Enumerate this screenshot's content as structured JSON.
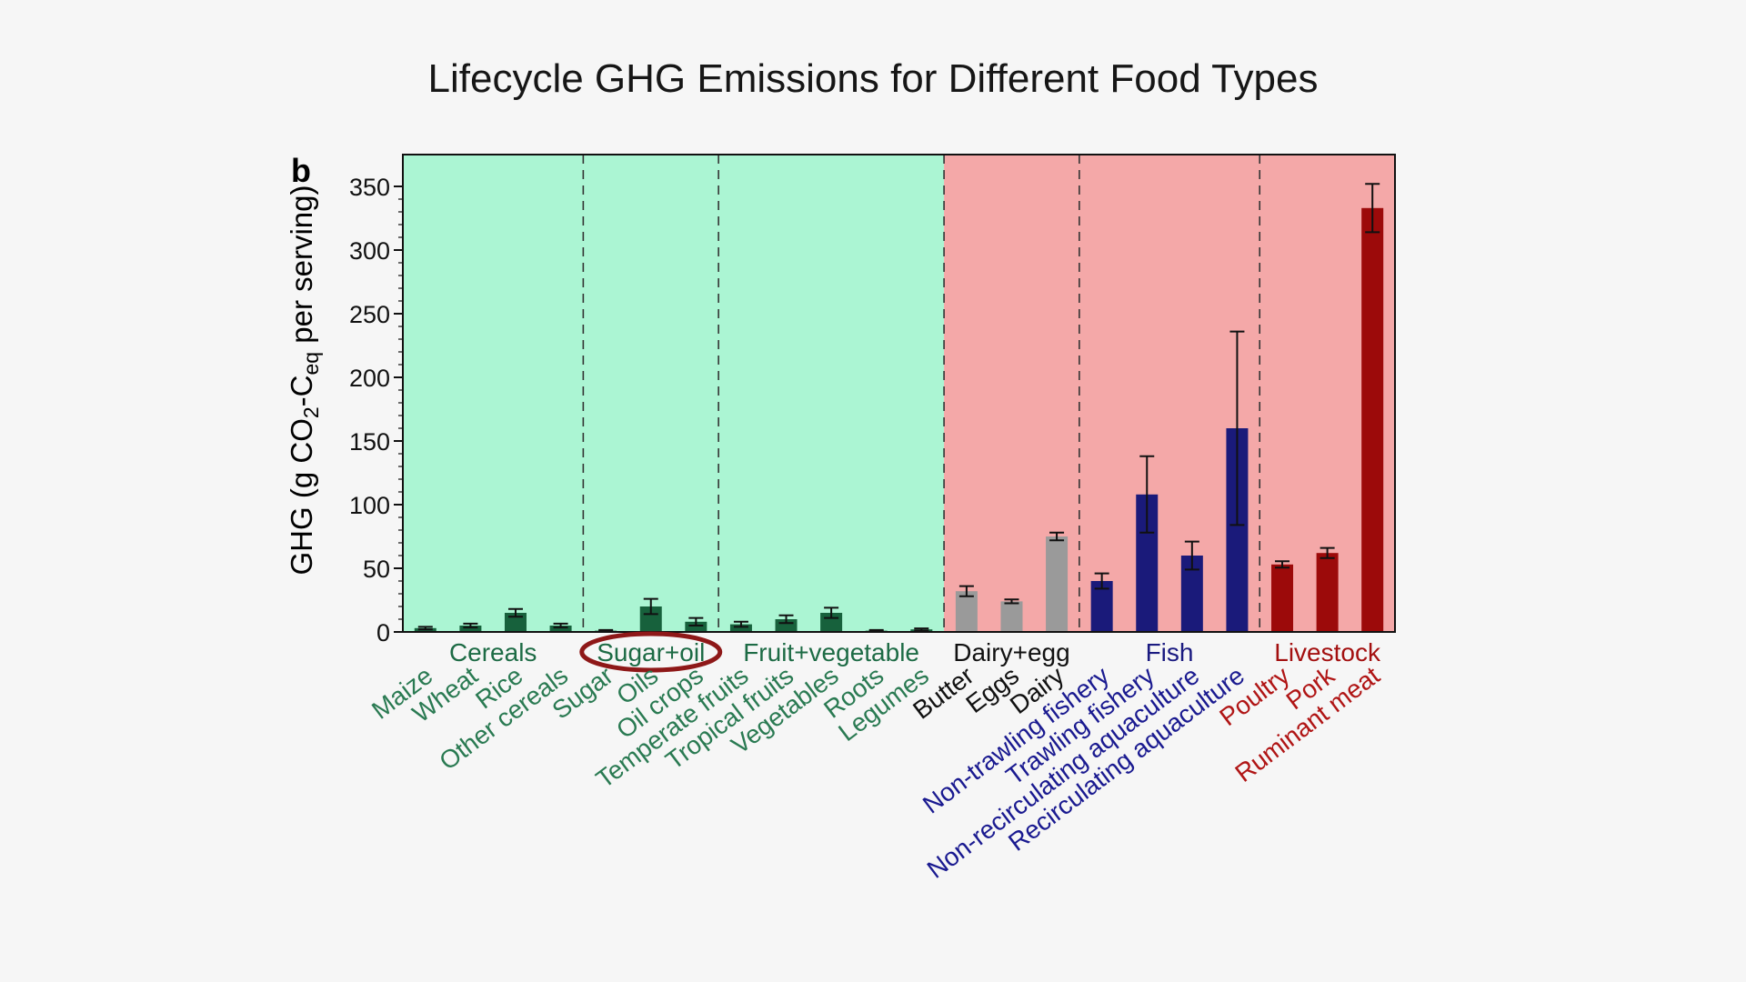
{
  "slide": {
    "title": "Lifecycle GHG Emissions for Different Food Types"
  },
  "chart_data": {
    "type": "bar",
    "panel_label": "b",
    "ylabel_parts": {
      "main": "GHG (g CO",
      "sub1": "2",
      "mid": "-C",
      "sub2": "eq",
      "tail": " per serving)"
    },
    "ylim": [
      0,
      375
    ],
    "yticks": [
      0,
      50,
      100,
      150,
      200,
      250,
      300,
      350
    ],
    "groups": [
      {
        "name": "Cereals",
        "color": "#1d6b45",
        "start": 0,
        "end": 3
      },
      {
        "name": "Sugar+oil",
        "color": "#1d6b45",
        "start": 4,
        "end": 6,
        "highlighted": true
      },
      {
        "name": "Fruit+vegetable",
        "color": "#1d6b45",
        "start": 7,
        "end": 11
      },
      {
        "name": "Dairy+egg",
        "color": "#111111",
        "start": 12,
        "end": 14
      },
      {
        "name": "Fish",
        "color": "#1a1a80",
        "start": 15,
        "end": 18
      },
      {
        "name": "Livestock",
        "color": "#a31010",
        "start": 19,
        "end": 21
      }
    ],
    "categories": [
      "Maize",
      "Wheat",
      "Rice",
      "Other cereals",
      "Sugar",
      "Oils",
      "Oil crops",
      "Temperate fruits",
      "Tropical fruits",
      "Vegetables",
      "Roots",
      "Legumes",
      "Butter",
      "Eggs",
      "Dairy",
      "Non-trawling fishery",
      "Trawling fishery",
      "Non-recirculating aquaculture",
      "Recirculating aquaculture",
      "Poultry",
      "Pork",
      "Ruminant meat"
    ],
    "values": [
      3,
      5,
      15,
      5,
      1,
      20,
      8,
      6,
      10,
      15,
      1,
      2,
      32,
      24,
      75,
      40,
      108,
      60,
      160,
      53,
      62,
      333
    ],
    "errors": [
      1,
      1.5,
      3,
      1.5,
      0.5,
      6,
      3,
      2,
      3,
      4,
      0.5,
      0.8,
      4,
      1.5,
      3,
      6,
      30,
      11,
      76,
      2.5,
      4,
      19
    ],
    "bar_colors": [
      "#17613c",
      "#17613c",
      "#17613c",
      "#17613c",
      "#17613c",
      "#17613c",
      "#17613c",
      "#17613c",
      "#17613c",
      "#17613c",
      "#17613c",
      "#17613c",
      "#9a9a9a",
      "#9a9a9a",
      "#9a9a9a",
      "#1a1a7a",
      "#1a1a7a",
      "#1a1a7a",
      "#1a1a7a",
      "#9c0a0a",
      "#9c0a0a",
      "#9c0a0a"
    ],
    "label_colors": [
      "#2a7a52",
      "#2a7a52",
      "#2a7a52",
      "#2a7a52",
      "#2a7a52",
      "#2a7a52",
      "#2a7a52",
      "#2a7a52",
      "#2a7a52",
      "#2a7a52",
      "#2a7a52",
      "#2a7a52",
      "#111111",
      "#111111",
      "#111111",
      "#1a1a90",
      "#1a1a90",
      "#1a1a90",
      "#1a1a90",
      "#b01515",
      "#b01515",
      "#b01515"
    ],
    "background_regions": {
      "plant_color": "#abf5d3",
      "animal_color": "#f4a8a8"
    },
    "grid": false
  }
}
